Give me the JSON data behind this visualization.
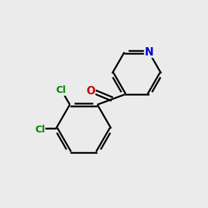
{
  "bg_color": "#ebebeb",
  "bond_color": "#000000",
  "bond_width": 1.8,
  "atom_colors": {
    "N": "#0000cc",
    "O": "#cc0000",
    "Cl": "#008800",
    "C": "#000000"
  },
  "font_size": 10,
  "fig_size": [
    3.0,
    3.0
  ],
  "dpi": 100
}
